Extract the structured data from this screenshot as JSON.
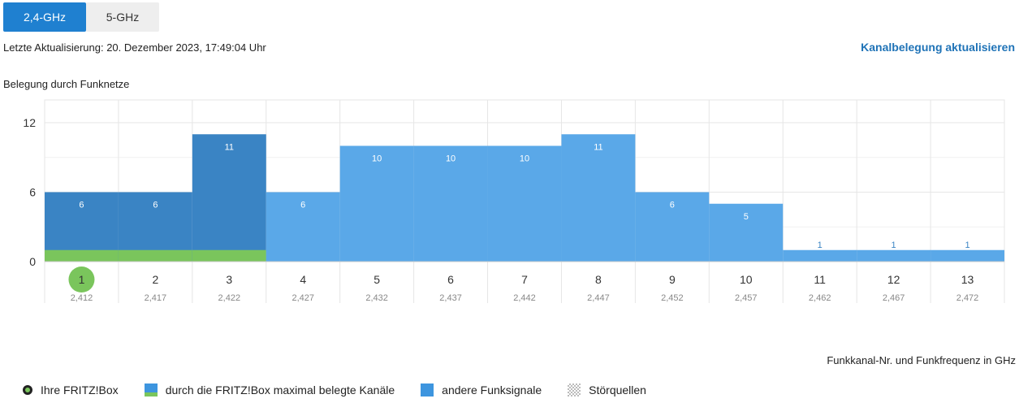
{
  "tabs": [
    {
      "label": "2,4-GHz",
      "active": true
    },
    {
      "label": "5-GHz",
      "active": false
    }
  ],
  "last_update": "Letzte Aktualisierung: 20. Dezember 2023, 17:49:04 Uhr",
  "refresh_link": "Kanalbelegung aktualisieren",
  "section_title": "Belegung durch Funknetze",
  "axis_caption": "Funkkanal-Nr. und Funkfrequenz in GHz",
  "legend": {
    "own_box": "Ihre FRITZ!Box",
    "fritz_channels": "durch die FRITZ!Box maximal belegte Kanäle",
    "other_signals": "andere Funksignale",
    "interference": "Störquellen"
  },
  "colors": {
    "fritz_block": "#3a84c4",
    "other_block": "#5aa8e8",
    "own_green": "#7ac55c",
    "grid": "#e6e6e6"
  },
  "chart_data": {
    "type": "bar",
    "categories": [
      "1",
      "2",
      "3",
      "4",
      "5",
      "6",
      "7",
      "8",
      "9",
      "10",
      "11",
      "12",
      "13"
    ],
    "frequencies": [
      "2,412",
      "2,417",
      "2,422",
      "2,427",
      "2,432",
      "2,437",
      "2,442",
      "2,447",
      "2,452",
      "2,457",
      "2,462",
      "2,467",
      "2,472"
    ],
    "values": [
      6,
      6,
      11,
      6,
      10,
      10,
      10,
      11,
      6,
      5,
      1,
      1,
      1
    ],
    "fritz_occupied": [
      true,
      true,
      true,
      false,
      false,
      false,
      false,
      false,
      false,
      false,
      false,
      false,
      false
    ],
    "own_channel": "1",
    "yticks": [
      0,
      6,
      12
    ],
    "ylim": [
      0,
      12
    ]
  }
}
